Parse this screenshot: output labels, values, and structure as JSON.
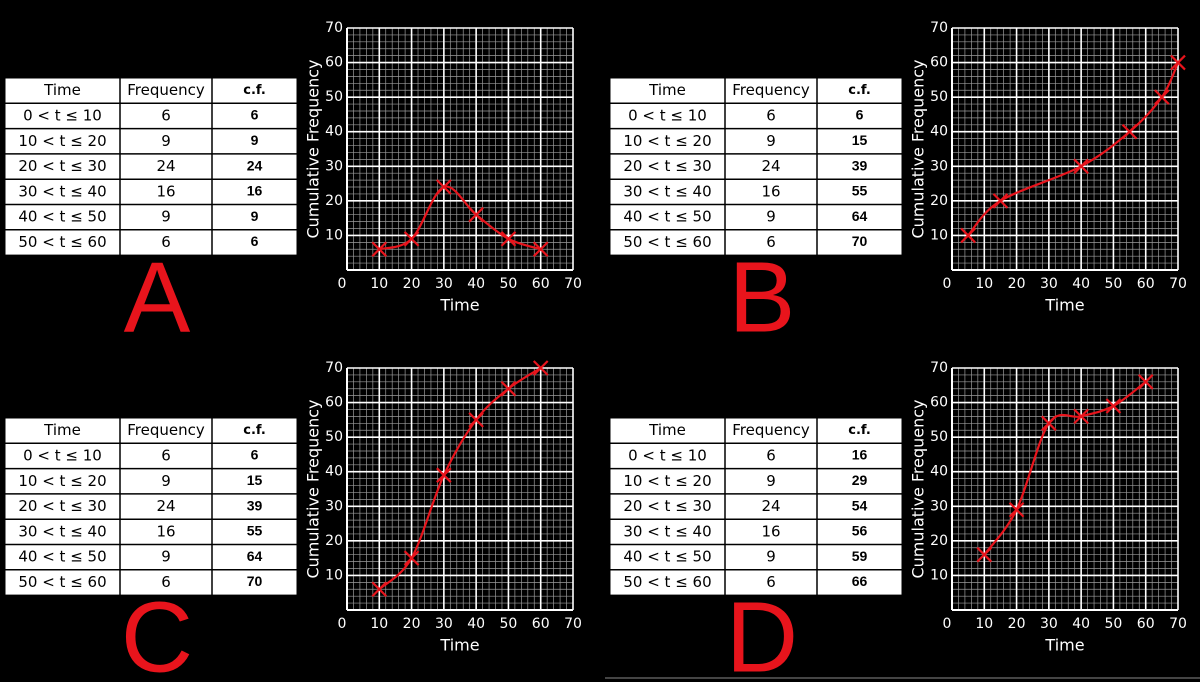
{
  "panels": [
    {
      "label": "A",
      "table": {
        "header": [
          "Time",
          "Frequency",
          "c.f."
        ],
        "rows": [
          [
            "0 < t ≤ 10",
            6,
            6
          ],
          [
            "10 < t ≤ 20",
            9,
            9
          ],
          [
            "20 < t ≤ 30",
            24,
            24
          ],
          [
            "30 < t ≤ 40",
            16,
            16
          ],
          [
            "40 < t ≤ 50",
            9,
            9
          ],
          [
            "50 < t ≤ 60",
            6,
            6
          ]
        ]
      }
    },
    {
      "label": "B",
      "table": {
        "header": [
          "Time",
          "Frequency",
          "c.f."
        ],
        "rows": [
          [
            "0 < t ≤ 10",
            6,
            6
          ],
          [
            "10 < t ≤ 20",
            9,
            15
          ],
          [
            "20 < t ≤ 30",
            24,
            39
          ],
          [
            "30 < t ≤ 40",
            16,
            55
          ],
          [
            "40 < t ≤ 50",
            9,
            64
          ],
          [
            "50 < t ≤ 60",
            6,
            70
          ]
        ]
      }
    },
    {
      "label": "C",
      "table": {
        "header": [
          "Time",
          "Frequency",
          "c.f."
        ],
        "rows": [
          [
            "0 < t ≤ 10",
            6,
            6
          ],
          [
            "10 < t ≤ 20",
            9,
            15
          ],
          [
            "20 < t ≤ 30",
            24,
            39
          ],
          [
            "30 < t ≤ 40",
            16,
            55
          ],
          [
            "40 < t ≤ 50",
            9,
            64
          ],
          [
            "50 < t ≤ 60",
            6,
            70
          ]
        ]
      }
    },
    {
      "label": "D",
      "table": {
        "header": [
          "Time",
          "Frequency",
          "c.f."
        ],
        "rows": [
          [
            "0 < t ≤ 10",
            6,
            16
          ],
          [
            "10 < t ≤ 20",
            9,
            29
          ],
          [
            "20 < t ≤ 30",
            24,
            54
          ],
          [
            "30 < t ≤ 40",
            16,
            56
          ],
          [
            "40 < t ≤ 50",
            9,
            59
          ],
          [
            "50 < t ≤ 60",
            6,
            66
          ]
        ]
      }
    }
  ],
  "chart_data": [
    {
      "type": "line",
      "xlabel": "Time",
      "ylabel": "Cumulative Frequency",
      "x": [
        10,
        20,
        30,
        40,
        50,
        60
      ],
      "values": [
        6,
        9,
        24,
        16,
        9,
        6
      ],
      "color": "#e8141c",
      "xlim": [
        0,
        70
      ],
      "ylim": [
        0,
        70
      ],
      "xticks": [
        0,
        10,
        20,
        30,
        40,
        50,
        60,
        70
      ],
      "yticks": [
        10,
        20,
        30,
        40,
        50,
        60,
        70
      ],
      "grid": true
    },
    {
      "type": "line",
      "xlabel": "Time",
      "ylabel": "Cumulative Frequency",
      "x": [
        5,
        15,
        40,
        55,
        65,
        70
      ],
      "values": [
        10,
        20,
        30,
        40,
        50,
        60
      ],
      "color": "#e8141c",
      "xlim": [
        0,
        70
      ],
      "ylim": [
        0,
        70
      ],
      "xticks": [
        0,
        10,
        20,
        30,
        40,
        50,
        60,
        70
      ],
      "yticks": [
        10,
        20,
        30,
        40,
        50,
        60,
        70
      ],
      "grid": true
    },
    {
      "type": "line",
      "xlabel": "Time",
      "ylabel": "Cumulative Frequency",
      "x": [
        10,
        20,
        30,
        40,
        50,
        60
      ],
      "values": [
        6,
        15,
        39,
        55,
        64,
        70
      ],
      "color": "#e8141c",
      "xlim": [
        0,
        70
      ],
      "ylim": [
        0,
        70
      ],
      "xticks": [
        0,
        10,
        20,
        30,
        40,
        50,
        60,
        70
      ],
      "yticks": [
        10,
        20,
        30,
        40,
        50,
        60,
        70
      ],
      "grid": true
    },
    {
      "type": "line",
      "xlabel": "Time",
      "ylabel": "Cumulative Frequency",
      "x": [
        10,
        20,
        30,
        40,
        50,
        60
      ],
      "values": [
        16,
        29,
        54,
        56,
        59,
        66
      ],
      "color": "#e8141c",
      "xlim": [
        0,
        70
      ],
      "ylim": [
        0,
        70
      ],
      "xticks": [
        0,
        10,
        20,
        30,
        40,
        50,
        60,
        70
      ],
      "yticks": [
        10,
        20,
        30,
        40,
        50,
        60,
        70
      ],
      "grid": true
    }
  ]
}
